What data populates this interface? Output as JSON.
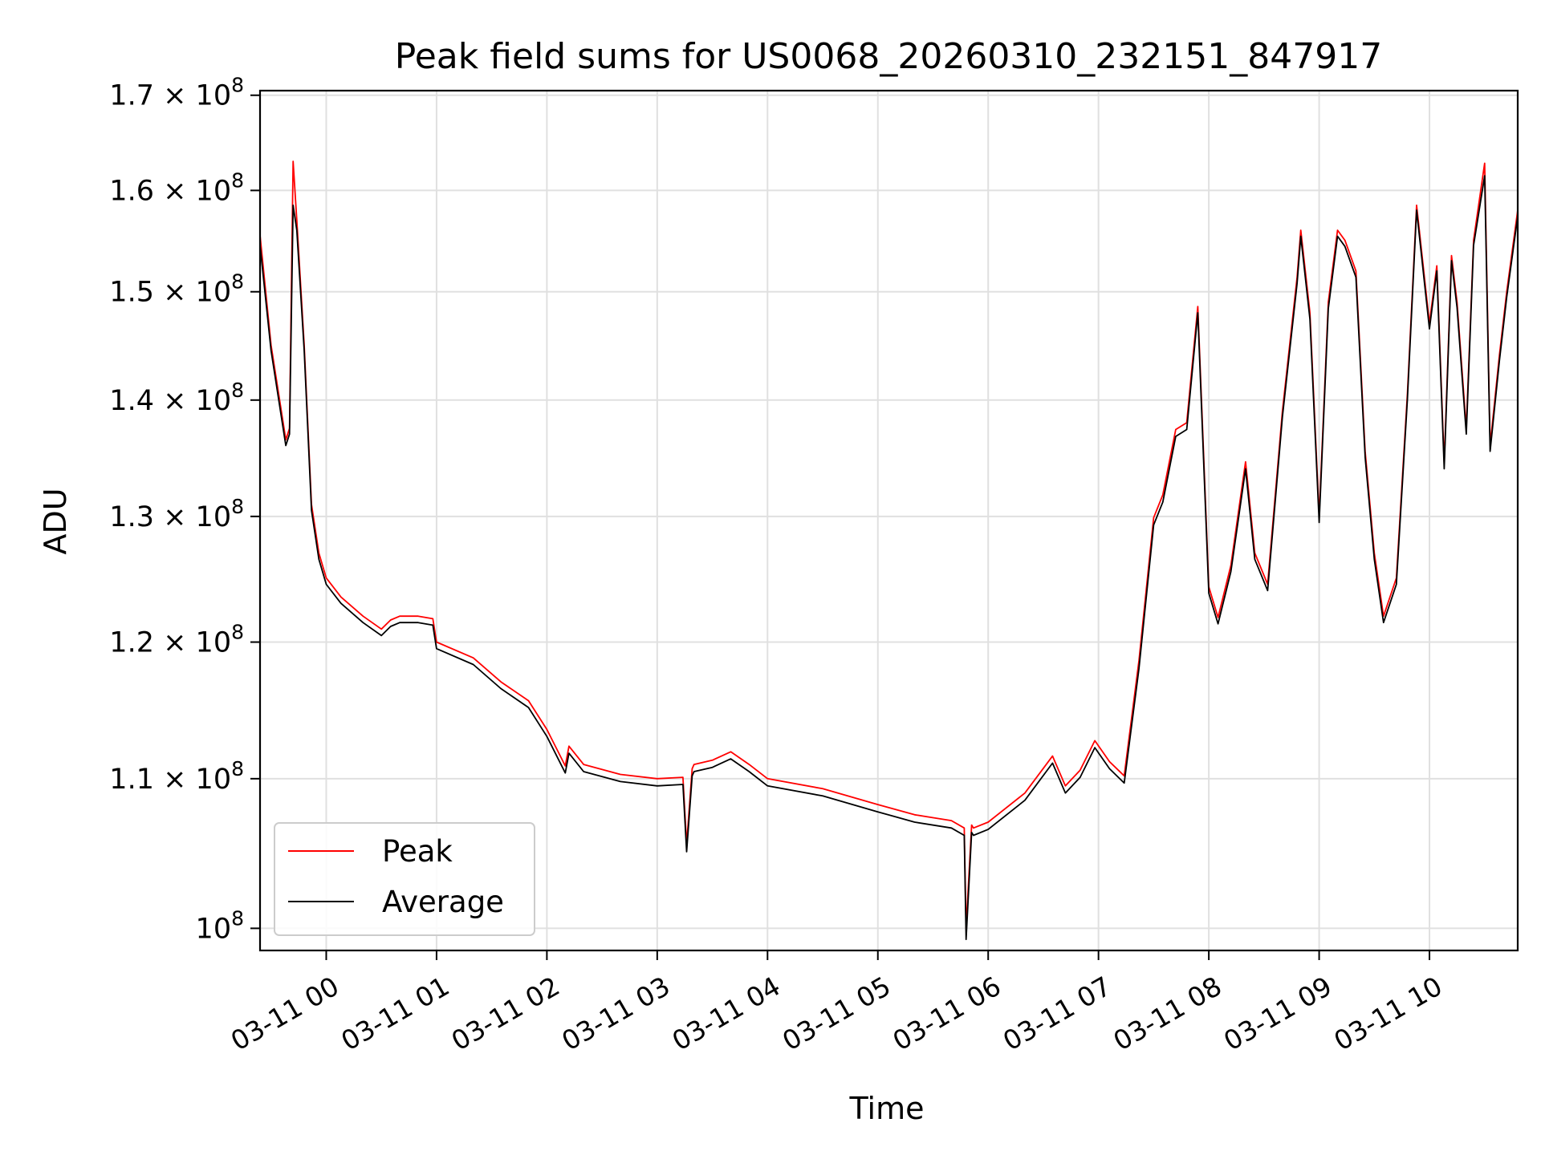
{
  "chart_data": {
    "type": "line",
    "title": "Peak field sums for US0068_20260310_232151_847917",
    "xlabel": "Time",
    "ylabel": "ADU",
    "y_scale": "log",
    "ylim": [
      98600000,
      170500000
    ],
    "xlim": [
      "2026-03-10 23:24",
      "2026-03-11 10:48"
    ],
    "grid": true,
    "legend_position": "lower-left",
    "x_ticks": [
      "03-11 00",
      "03-11 01",
      "03-11 02",
      "03-11 03",
      "03-11 04",
      "03-11 05",
      "03-11 06",
      "03-11 07",
      "03-11 08",
      "03-11 09",
      "03-11 10"
    ],
    "y_ticks": [
      {
        "value": 100000000,
        "base": "10",
        "exp": "8",
        "mantissa": ""
      },
      {
        "value": 110000000,
        "mantissa": "1.1",
        "base": "10",
        "exp": "8"
      },
      {
        "value": 120000000,
        "mantissa": "1.2",
        "base": "10",
        "exp": "8"
      },
      {
        "value": 130000000,
        "mantissa": "1.3",
        "base": "10",
        "exp": "8"
      },
      {
        "value": 140000000,
        "mantissa": "1.4",
        "base": "10",
        "exp": "8"
      },
      {
        "value": 150000000,
        "mantissa": "1.5",
        "base": "10",
        "exp": "8"
      },
      {
        "value": 160000000,
        "mantissa": "1.6",
        "base": "10",
        "exp": "8"
      },
      {
        "value": 170000000,
        "mantissa": "1.7",
        "base": "10",
        "exp": "8"
      }
    ],
    "x": [
      "2026-03-10 23:24",
      "2026-03-10 23:30",
      "2026-03-10 23:38",
      "2026-03-10 23:40",
      "2026-03-10 23:42",
      "2026-03-10 23:44",
      "2026-03-10 23:48",
      "2026-03-10 23:52",
      "2026-03-10 23:56",
      "2026-03-11 00:00",
      "2026-03-11 00:08",
      "2026-03-11 00:20",
      "2026-03-11 00:30",
      "2026-03-11 00:35",
      "2026-03-11 00:40",
      "2026-03-11 00:50",
      "2026-03-11 00:58",
      "2026-03-11 01:00",
      "2026-03-11 01:20",
      "2026-03-11 01:35",
      "2026-03-11 01:50",
      "2026-03-11 02:00",
      "2026-03-11 02:10",
      "2026-03-11 02:12",
      "2026-03-11 02:20",
      "2026-03-11 02:40",
      "2026-03-11 03:00",
      "2026-03-11 03:14",
      "2026-03-11 03:16",
      "2026-03-11 03:19",
      "2026-03-11 03:20",
      "2026-03-11 03:30",
      "2026-03-11 03:40",
      "2026-03-11 03:50",
      "2026-03-11 04:00",
      "2026-03-11 04:30",
      "2026-03-11 05:00",
      "2026-03-11 05:20",
      "2026-03-11 05:40",
      "2026-03-11 05:47",
      "2026-03-11 05:48",
      "2026-03-11 05:51",
      "2026-03-11 05:52",
      "2026-03-11 06:00",
      "2026-03-11 06:20",
      "2026-03-11 06:35",
      "2026-03-11 06:42",
      "2026-03-11 06:50",
      "2026-03-11 06:58",
      "2026-03-11 07:06",
      "2026-03-11 07:14",
      "2026-03-11 07:22",
      "2026-03-11 07:30",
      "2026-03-11 07:35",
      "2026-03-11 07:42",
      "2026-03-11 07:48",
      "2026-03-11 07:54",
      "2026-03-11 08:00",
      "2026-03-11 08:05",
      "2026-03-11 08:12",
      "2026-03-11 08:20",
      "2026-03-11 08:25",
      "2026-03-11 08:32",
      "2026-03-11 08:40",
      "2026-03-11 08:48",
      "2026-03-11 08:50",
      "2026-03-11 08:55",
      "2026-03-11 09:00",
      "2026-03-11 09:05",
      "2026-03-11 09:10",
      "2026-03-11 09:14",
      "2026-03-11 09:20",
      "2026-03-11 09:25",
      "2026-03-11 09:30",
      "2026-03-11 09:35",
      "2026-03-11 09:42",
      "2026-03-11 09:48",
      "2026-03-11 09:53",
      "2026-03-11 10:00",
      "2026-03-11 10:04",
      "2026-03-11 10:08",
      "2026-03-11 10:12",
      "2026-03-11 10:15",
      "2026-03-11 10:20",
      "2026-03-11 10:24",
      "2026-03-11 10:30",
      "2026-03-11 10:33",
      "2026-03-11 10:38",
      "2026-03-11 10:42",
      "2026-03-11 10:48"
    ],
    "series": [
      {
        "name": "Peak",
        "color": "#ff0000",
        "values": [
          155500000,
          145000000,
          136500000,
          137500000,
          163000000,
          157000000,
          145000000,
          131000000,
          127000000,
          125000000,
          123500000,
          122000000,
          121000000,
          121700000,
          122000000,
          122000000,
          121800000,
          120000000,
          118800000,
          117000000,
          115600000,
          113500000,
          110900000,
          112300000,
          111000000,
          110300000,
          110000000,
          110100000,
          105500000,
          110700000,
          111000000,
          111300000,
          111900000,
          111000000,
          110000000,
          109300000,
          108200000,
          107500000,
          107100000,
          106600000,
          100000000,
          106800000,
          106600000,
          107000000,
          109000000,
          111600000,
          109500000,
          110600000,
          112700000,
          111200000,
          110200000,
          118600000,
          129900000,
          131800000,
          137400000,
          138000000,
          148600000,
          124300000,
          121900000,
          126000000,
          134600000,
          127000000,
          124500000,
          139000000,
          151400000,
          156000000,
          148000000,
          130000000,
          149000000,
          156000000,
          155000000,
          152000000,
          135500000,
          127000000,
          122000000,
          125000000,
          140500000,
          158500000,
          147000000,
          152500000,
          134500000,
          153500000,
          149000000,
          137500000,
          155000000,
          162800000,
          136000000,
          144000000,
          150000000,
          158000000
        ]
      },
      {
        "name": "Average",
        "color": "#000000",
        "values": [
          154500000,
          144500000,
          136000000,
          137000000,
          158500000,
          156000000,
          144500000,
          130500000,
          126500000,
          124500000,
          123000000,
          121500000,
          120500000,
          121200000,
          121500000,
          121500000,
          121300000,
          119500000,
          118300000,
          116500000,
          115100000,
          113000000,
          110400000,
          111800000,
          110500000,
          109800000,
          109500000,
          109600000,
          105000000,
          110200000,
          110500000,
          110800000,
          111400000,
          110500000,
          109500000,
          108800000,
          107700000,
          107000000,
          106600000,
          106100000,
          99300000,
          106300000,
          106100000,
          106500000,
          108500000,
          111100000,
          109000000,
          110100000,
          112200000,
          110700000,
          109700000,
          118000000,
          129300000,
          131200000,
          136800000,
          137400000,
          148000000,
          123800000,
          121400000,
          125500000,
          134000000,
          126500000,
          124000000,
          138500000,
          150800000,
          155400000,
          147400000,
          129500000,
          148400000,
          155400000,
          154400000,
          151400000,
          135000000,
          126500000,
          121500000,
          124500000,
          140000000,
          158000000,
          146500000,
          152000000,
          134000000,
          153000000,
          148500000,
          137000000,
          154500000,
          161500000,
          135500000,
          143500000,
          149500000,
          157400000
        ]
      }
    ]
  }
}
